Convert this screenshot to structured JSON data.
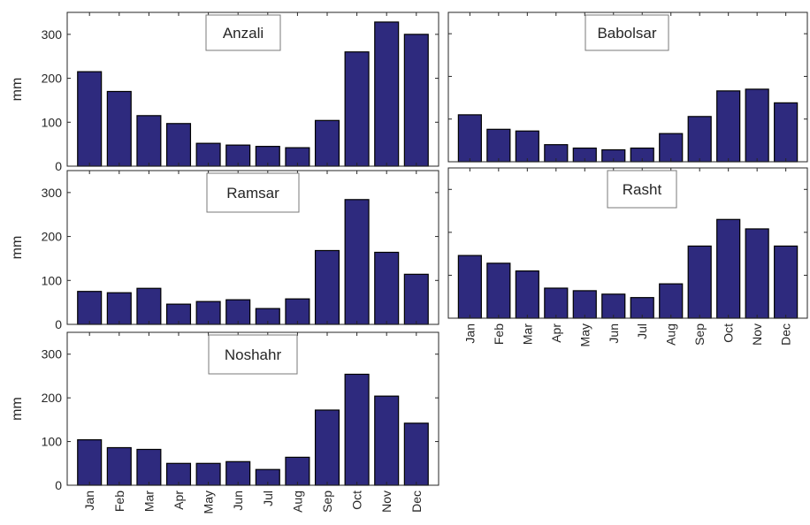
{
  "colors": {
    "bar_fill": "#2e2a7e",
    "bar_stroke": "#000000",
    "axis": "#262626",
    "background": "#ffffff"
  },
  "chart_data": [
    {
      "type": "bar",
      "title": "Anzali",
      "ylabel": "mm",
      "ylim": [
        0,
        350
      ],
      "yticks": [
        0,
        100,
        200,
        300
      ],
      "categories": [
        "Jan",
        "Feb",
        "Mar",
        "Apr",
        "May",
        "Jun",
        "Jul",
        "Aug",
        "Sep",
        "Oct",
        "Nov",
        "Dec"
      ],
      "values": [
        215,
        170,
        115,
        97,
        52,
        48,
        45,
        42,
        104,
        260,
        328,
        300
      ],
      "show_xticklabels": false,
      "show_yticklabels": true,
      "legend": "top-center"
    },
    {
      "type": "bar",
      "title": "Babolsar",
      "ylabel": "",
      "ylim": [
        0,
        350
      ],
      "yticks": [
        0,
        100,
        200,
        300
      ],
      "categories": [
        "Jan",
        "Feb",
        "Mar",
        "Apr",
        "May",
        "Jun",
        "Jul",
        "Aug",
        "Sep",
        "Oct",
        "Nov",
        "Dec"
      ],
      "values": [
        110,
        76,
        72,
        40,
        32,
        28,
        32,
        66,
        106,
        166,
        170,
        138
      ],
      "show_xticklabels": false,
      "show_yticklabels": false,
      "legend": "top-center"
    },
    {
      "type": "bar",
      "title": "Ramsar",
      "ylabel": "mm",
      "ylim": [
        0,
        350
      ],
      "yticks": [
        0,
        100,
        200,
        300
      ],
      "categories": [
        "Jan",
        "Feb",
        "Mar",
        "Apr",
        "May",
        "Jun",
        "Jul",
        "Aug",
        "Sep",
        "Oct",
        "Nov",
        "Dec"
      ],
      "values": [
        75,
        72,
        82,
        46,
        52,
        56,
        36,
        58,
        168,
        284,
        164,
        114
      ],
      "show_xticklabels": false,
      "show_yticklabels": true,
      "legend": "top-center"
    },
    {
      "type": "bar",
      "title": "Rasht",
      "ylabel": "",
      "ylim": [
        0,
        350
      ],
      "yticks": [
        0,
        100,
        200,
        300
      ],
      "categories": [
        "Jan",
        "Feb",
        "Mar",
        "Apr",
        "May",
        "Jun",
        "Jul",
        "Aug",
        "Sep",
        "Oct",
        "Nov",
        "Dec"
      ],
      "values": [
        146,
        128,
        110,
        70,
        64,
        56,
        48,
        80,
        168,
        230,
        208,
        168
      ],
      "show_xticklabels": true,
      "show_yticklabels": false,
      "legend": "top-center"
    },
    {
      "type": "bar",
      "title": "Noshahr",
      "ylabel": "mm",
      "ylim": [
        0,
        350
      ],
      "yticks": [
        0,
        100,
        200,
        300
      ],
      "categories": [
        "Jan",
        "Feb",
        "Mar",
        "Apr",
        "May",
        "Jun",
        "Jul",
        "Aug",
        "Sep",
        "Oct",
        "Nov",
        "Dec"
      ],
      "values": [
        104,
        86,
        82,
        50,
        50,
        54,
        36,
        64,
        172,
        254,
        204,
        142
      ],
      "show_xticklabels": true,
      "show_yticklabels": true,
      "legend": "top-center"
    }
  ]
}
